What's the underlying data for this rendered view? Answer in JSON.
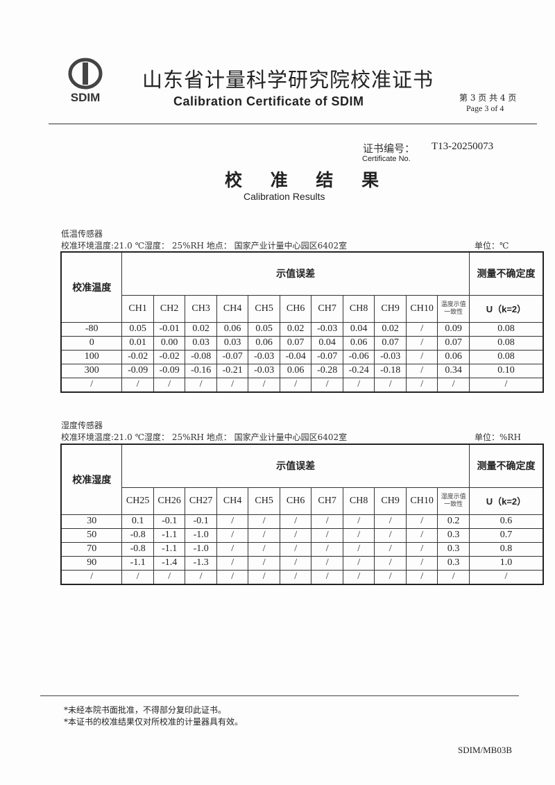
{
  "header": {
    "logo_text": "SDIM",
    "title_cn": "山东省计量科学研究院校准证书",
    "title_en": "Calibration Certificate of SDIM",
    "page_cn": "第 3 页 共 4 页",
    "page_en": "Page 3 of 4"
  },
  "certificate": {
    "label_cn": "证书编号：",
    "label_en": "Certificate No.",
    "number": "T13-20250073"
  },
  "results": {
    "title_cn": "校 准 结 果",
    "title_en": "Calibration Results"
  },
  "tables": [
    {
      "section": "低温传感器",
      "env": "校准环境温度:21.0 ℃湿度： 25%RH  地点： 国家产业计量中心园区6402室",
      "unit": "单位：℃",
      "first_col": "校准温度",
      "group": "示值误差",
      "uncert": "测量不确定度",
      "channels": [
        "CH1",
        "CH2",
        "CH3",
        "CH4",
        "CH5",
        "CH6",
        "CH7",
        "CH8",
        "CH9",
        "CH10"
      ],
      "consistency": "温度示值一致性",
      "u_label": "U（k=2）",
      "rows": [
        [
          "-80",
          "0.05",
          "-0.01",
          "0.02",
          "0.06",
          "0.05",
          "0.02",
          "-0.03",
          "0.04",
          "0.02",
          "/",
          "0.09",
          "0.08"
        ],
        [
          "0",
          "0.01",
          "0.00",
          "0.03",
          "0.03",
          "0.06",
          "0.07",
          "0.04",
          "0.06",
          "0.07",
          "/",
          "0.07",
          "0.08"
        ],
        [
          "100",
          "-0.02",
          "-0.02",
          "-0.08",
          "-0.07",
          "-0.03",
          "-0.04",
          "-0.07",
          "-0.06",
          "-0.03",
          "/",
          "0.06",
          "0.08"
        ],
        [
          "300",
          "-0.09",
          "-0.09",
          "-0.16",
          "-0.21",
          "-0.03",
          "0.06",
          "-0.28",
          "-0.24",
          "-0.18",
          "/",
          "0.34",
          "0.10"
        ],
        [
          "/",
          "/",
          "/",
          "/",
          "/",
          "/",
          "/",
          "/",
          "/",
          "/",
          "/",
          "/",
          "/"
        ]
      ]
    },
    {
      "section": "湿度传感器",
      "env": "校准环境温度:21.0 ℃湿度： 25%RH  地点： 国家产业计量中心园区6402室",
      "unit": "单位：%RH",
      "first_col": "校准湿度",
      "group": "示值误差",
      "uncert": "测量不确定度",
      "channels": [
        "CH25",
        "CH26",
        "CH27",
        "CH4",
        "CH5",
        "CH6",
        "CH7",
        "CH8",
        "CH9",
        "CH10"
      ],
      "consistency": "湿度示值一致性",
      "u_label": "U（k=2）",
      "rows": [
        [
          "30",
          "0.1",
          "-0.1",
          "-0.1",
          "/",
          "/",
          "/",
          "/",
          "/",
          "/",
          "/",
          "0.2",
          "0.6"
        ],
        [
          "50",
          "-0.8",
          "-1.1",
          "-1.0",
          "/",
          "/",
          "/",
          "/",
          "/",
          "/",
          "/",
          "0.3",
          "0.7"
        ],
        [
          "70",
          "-0.8",
          "-1.1",
          "-1.0",
          "/",
          "/",
          "/",
          "/",
          "/",
          "/",
          "/",
          "0.3",
          "0.8"
        ],
        [
          "90",
          "-1.1",
          "-1.4",
          "-1.3",
          "/",
          "/",
          "/",
          "/",
          "/",
          "/",
          "/",
          "0.3",
          "1.0"
        ],
        [
          "/",
          "/",
          "/",
          "/",
          "/",
          "/",
          "/",
          "/",
          "/",
          "/",
          "/",
          "/",
          "/"
        ]
      ]
    }
  ],
  "footer": {
    "notes": [
      "*未经本院书面批准，不得部分复印此证书。",
      "*本证书的校准结果仅对所校准的计量器具有效。"
    ],
    "code": "SDIM/MB03B"
  }
}
